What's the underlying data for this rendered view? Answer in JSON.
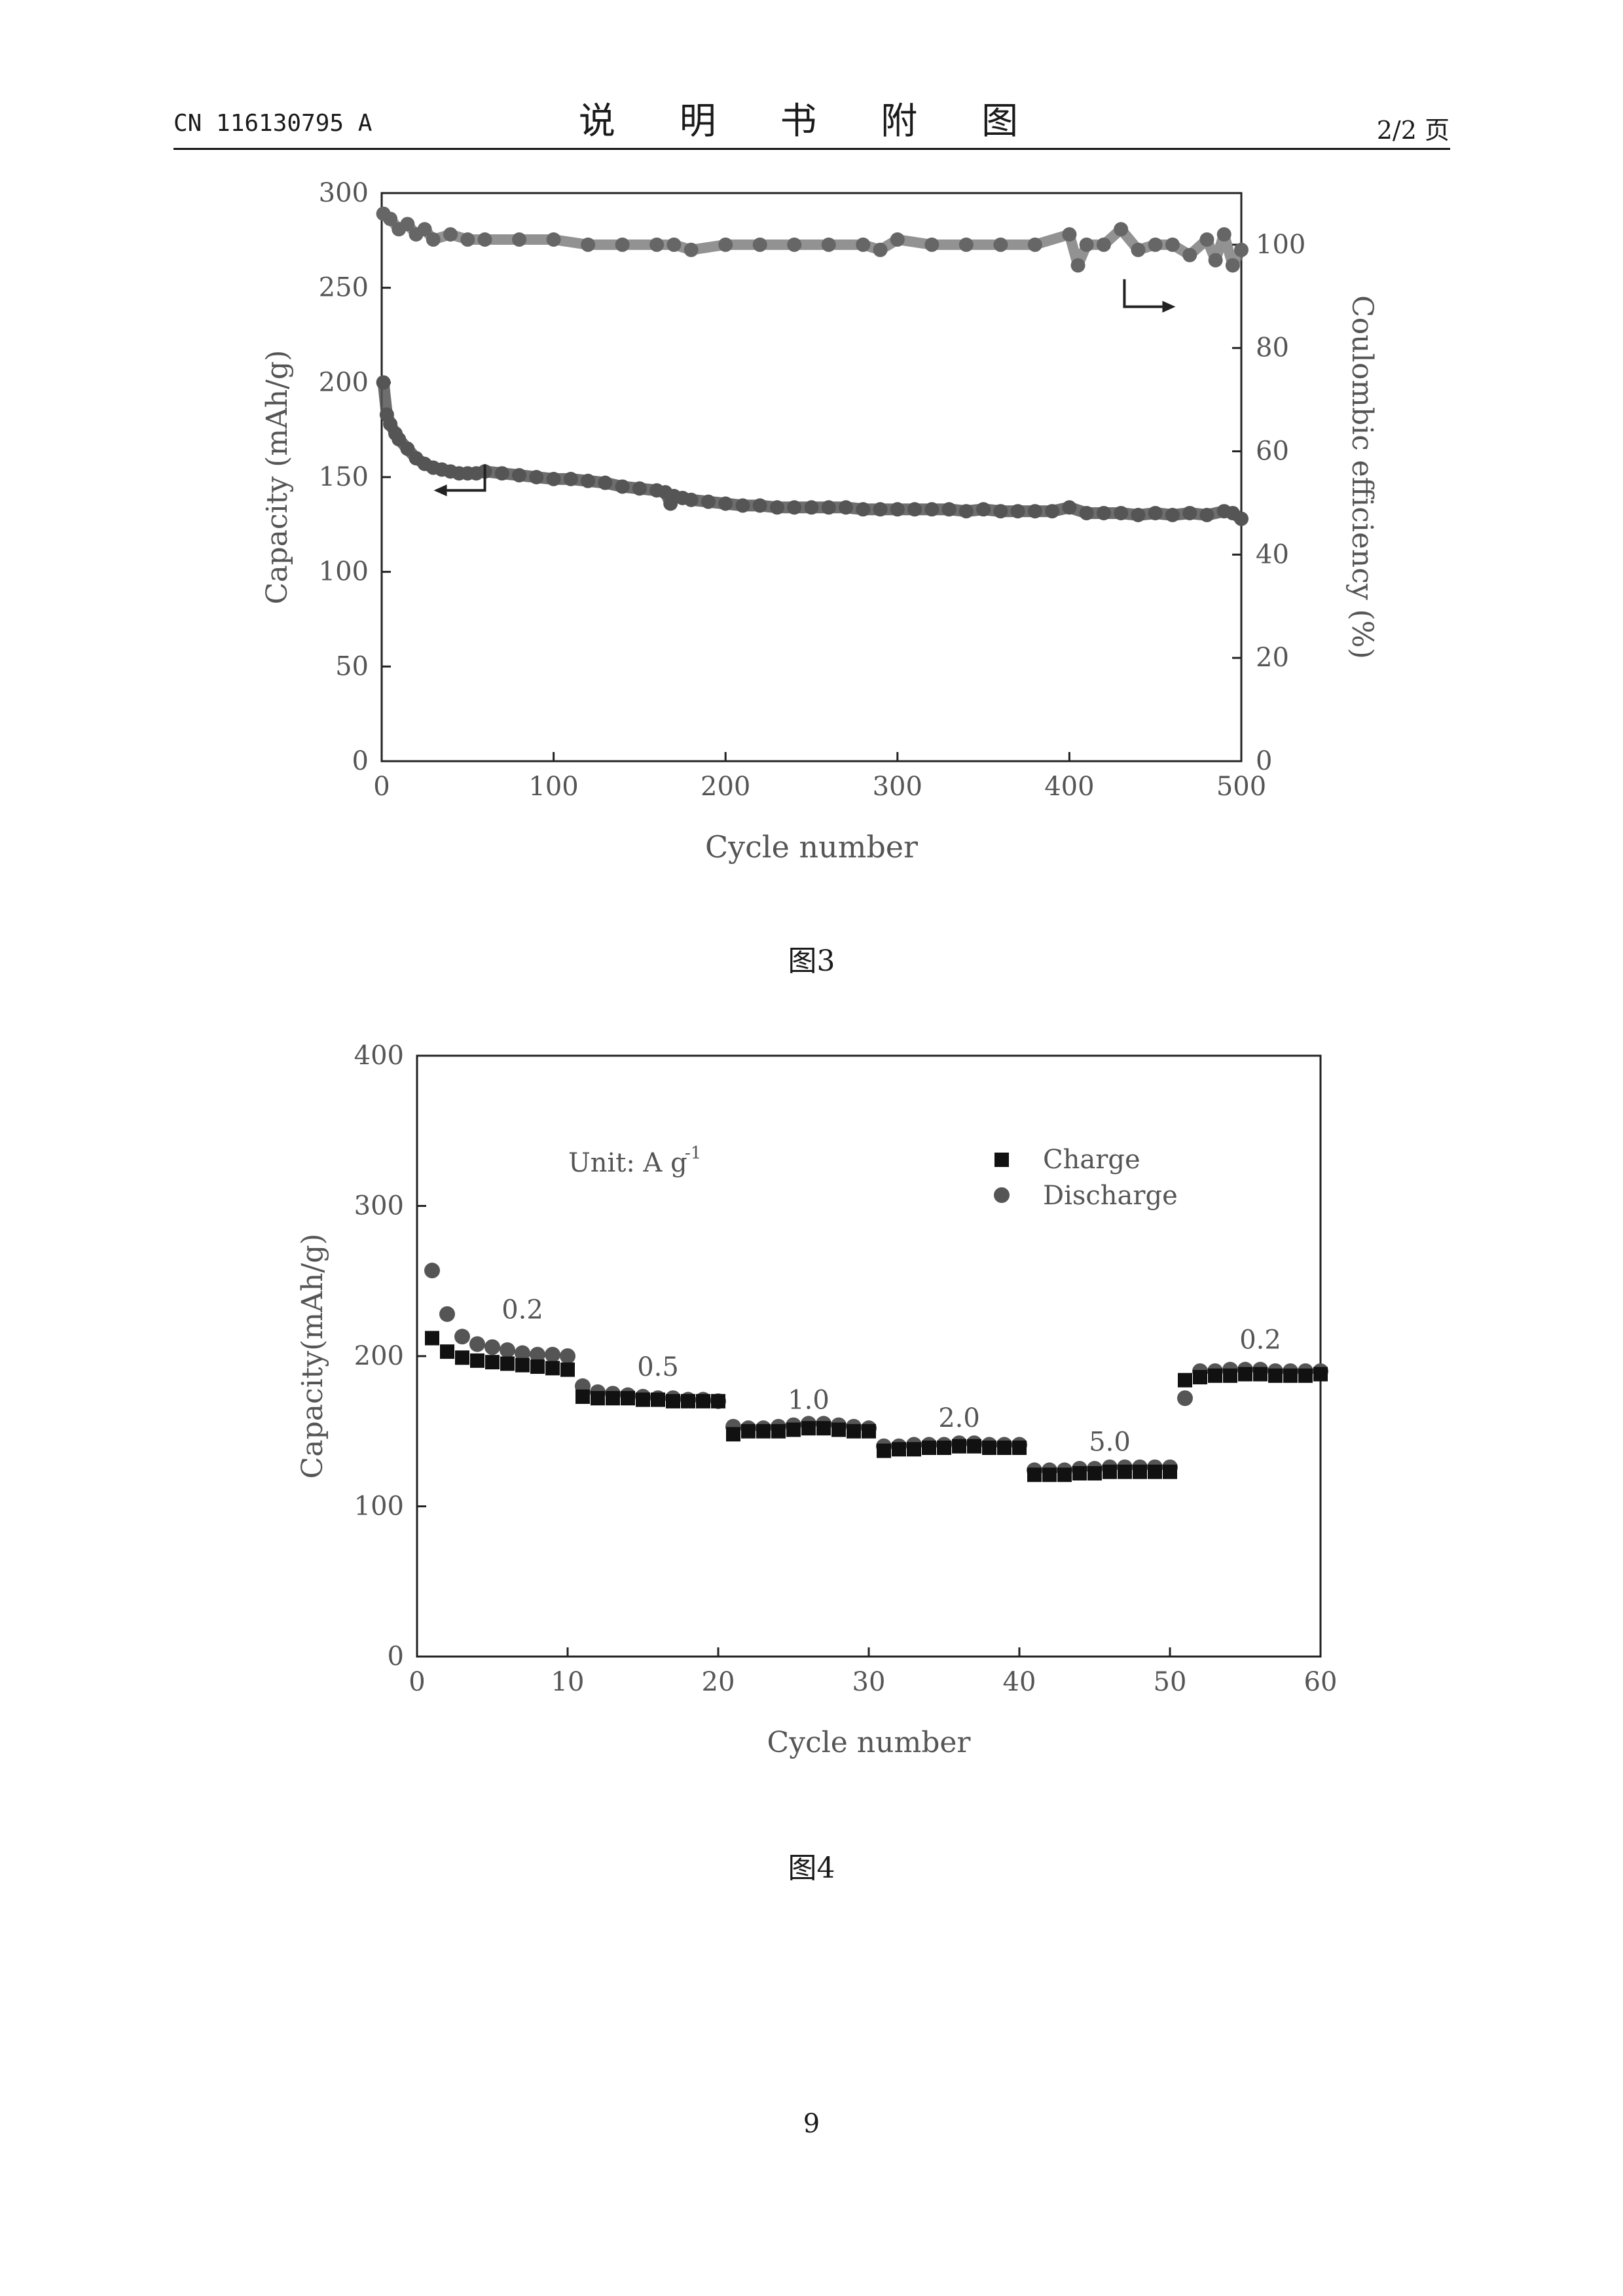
{
  "header": {
    "doc_number": "CN 116130795 A",
    "title": "说 明 书 附 图",
    "page_of": "2/2 页"
  },
  "captions": {
    "fig3": "图3",
    "fig4": "图4"
  },
  "page_number": "9",
  "colors": {
    "markers": "#555555",
    "axis": "#222222",
    "text": "#555555"
  },
  "chart_data": [
    {
      "type": "scatter",
      "xlabel": "Cycle number",
      "ylabel": "Capacity (mAh/g)",
      "y2label": "Coulombic efficiency (%)",
      "xlim": [
        0,
        500
      ],
      "ylim": [
        0,
        300
      ],
      "y2lim": [
        0,
        110
      ],
      "x_ticks": [
        0,
        100,
        200,
        300,
        400,
        500
      ],
      "y_ticks": [
        0,
        50,
        100,
        150,
        200,
        250,
        300
      ],
      "y2_ticks": [
        0,
        20,
        40,
        60,
        80,
        100
      ],
      "series": [
        {
          "axis": "left",
          "x": [
            1,
            3,
            5,
            8,
            10,
            15,
            20,
            25,
            30,
            35,
            40,
            45,
            50,
            55,
            60,
            70,
            80,
            90,
            100,
            110,
            120,
            130,
            140,
            150,
            160,
            165,
            168,
            170,
            175,
            180,
            190,
            200,
            210,
            220,
            230,
            240,
            250,
            260,
            270,
            280,
            290,
            300,
            310,
            320,
            330,
            340,
            350,
            360,
            370,
            380,
            390,
            400,
            410,
            420,
            430,
            440,
            450,
            460,
            470,
            480,
            490,
            495,
            500
          ],
          "values": [
            200,
            183,
            178,
            173,
            170,
            165,
            160,
            157,
            155,
            154,
            153,
            152,
            152,
            152,
            153,
            152,
            151,
            150,
            149,
            149,
            148,
            147,
            145,
            144,
            143,
            142,
            136,
            140,
            139,
            138,
            137,
            136,
            135,
            135,
            134,
            134,
            134,
            134,
            134,
            133,
            133,
            133,
            133,
            133,
            133,
            132,
            133,
            132,
            132,
            132,
            132,
            134,
            131,
            131,
            131,
            130,
            131,
            130,
            131,
            130,
            132,
            131,
            128
          ]
        },
        {
          "axis": "right",
          "x": [
            1,
            5,
            10,
            15,
            20,
            25,
            30,
            40,
            50,
            60,
            80,
            100,
            120,
            140,
            160,
            170,
            180,
            200,
            220,
            240,
            260,
            280,
            290,
            300,
            320,
            340,
            360,
            380,
            400,
            405,
            410,
            420,
            430,
            440,
            450,
            460,
            470,
            480,
            485,
            490,
            495,
            500
          ],
          "values": [
            106,
            105,
            103,
            104,
            102,
            103,
            101,
            102,
            101,
            101,
            101,
            101,
            100,
            100,
            100,
            100,
            99,
            100,
            100,
            100,
            100,
            100,
            99,
            101,
            100,
            100,
            100,
            100,
            102,
            96,
            100,
            100,
            103,
            99,
            100,
            100,
            98,
            101,
            97,
            102,
            96,
            99
          ]
        }
      ]
    },
    {
      "type": "scatter",
      "xlabel": "Cycle number",
      "ylabel": "Capacity(mAh/g)",
      "xlim": [
        0,
        60
      ],
      "ylim": [
        0,
        400
      ],
      "x_ticks": [
        0,
        10,
        20,
        30,
        40,
        50,
        60
      ],
      "y_ticks": [
        0,
        100,
        200,
        300,
        400
      ],
      "annotation_unit": {
        "prefix": "Unit: A g",
        "sup": "-1"
      },
      "rate_labels": [
        {
          "x": 7,
          "y": 225,
          "text": "0.2"
        },
        {
          "x": 16,
          "y": 187,
          "text": "0.5"
        },
        {
          "x": 26,
          "y": 165,
          "text": "1.0"
        },
        {
          "x": 36,
          "y": 153,
          "text": "2.0"
        },
        {
          "x": 46,
          "y": 137,
          "text": "5.0"
        },
        {
          "x": 56,
          "y": 205,
          "text": "0.2"
        }
      ],
      "legend_position": "top-right",
      "series": [
        {
          "name": "Charge",
          "marker": "square",
          "x": [
            1,
            2,
            3,
            4,
            5,
            6,
            7,
            8,
            9,
            10,
            11,
            12,
            13,
            14,
            15,
            16,
            17,
            18,
            19,
            20,
            21,
            22,
            23,
            24,
            25,
            26,
            27,
            28,
            29,
            30,
            31,
            32,
            33,
            34,
            35,
            36,
            37,
            38,
            39,
            40,
            41,
            42,
            43,
            44,
            45,
            46,
            47,
            48,
            49,
            50,
            51,
            52,
            53,
            54,
            55,
            56,
            57,
            58,
            59,
            60
          ],
          "values": [
            212,
            203,
            199,
            197,
            196,
            195,
            194,
            193,
            192,
            191,
            173,
            172,
            172,
            172,
            171,
            171,
            170,
            170,
            170,
            170,
            148,
            150,
            150,
            150,
            151,
            152,
            152,
            151,
            150,
            150,
            137,
            138,
            138,
            139,
            139,
            140,
            140,
            139,
            139,
            139,
            121,
            121,
            121,
            122,
            122,
            123,
            123,
            123,
            123,
            123,
            184,
            186,
            187,
            187,
            188,
            188,
            187,
            187,
            187,
            188
          ]
        },
        {
          "name": "Discharge",
          "marker": "circle",
          "x": [
            1,
            2,
            3,
            4,
            5,
            6,
            7,
            8,
            9,
            10,
            11,
            12,
            13,
            14,
            15,
            16,
            17,
            18,
            19,
            20,
            21,
            22,
            23,
            24,
            25,
            26,
            27,
            28,
            29,
            30,
            31,
            32,
            33,
            34,
            35,
            36,
            37,
            38,
            39,
            40,
            41,
            42,
            43,
            44,
            45,
            46,
            47,
            48,
            49,
            50,
            51,
            52,
            53,
            54,
            55,
            56,
            57,
            58,
            59,
            60
          ],
          "values": [
            257,
            228,
            213,
            208,
            206,
            204,
            202,
            201,
            201,
            200,
            180,
            176,
            175,
            174,
            173,
            172,
            172,
            171,
            171,
            170,
            153,
            152,
            152,
            153,
            154,
            155,
            155,
            154,
            153,
            152,
            140,
            140,
            141,
            141,
            141,
            142,
            142,
            141,
            141,
            141,
            124,
            124,
            124,
            125,
            125,
            126,
            126,
            126,
            126,
            126,
            172,
            190,
            190,
            191,
            191,
            191,
            190,
            190,
            190,
            190
          ]
        }
      ]
    }
  ]
}
